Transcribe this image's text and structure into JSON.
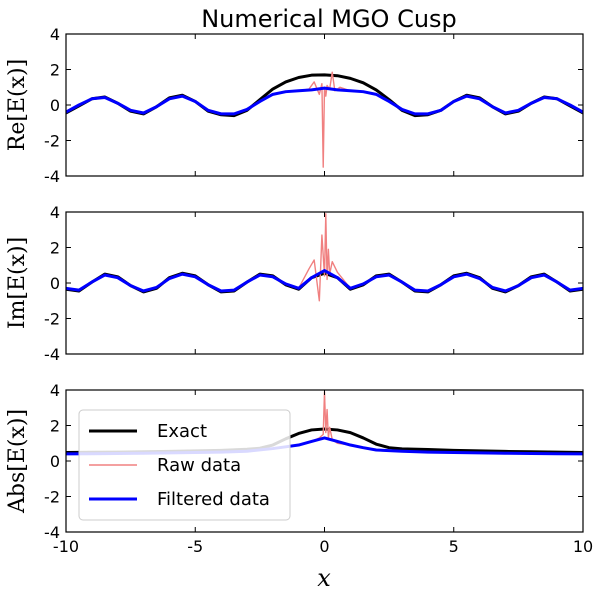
{
  "figure": {
    "title": "Numerical MGO Cusp",
    "xlabel": "x"
  },
  "chart_data": [
    {
      "type": "line",
      "ylabel": "Re[E(x)]",
      "xlim": [
        -10,
        10
      ],
      "ylim": [
        -4,
        4
      ],
      "x_ticks": [
        -10,
        -5,
        0,
        5,
        10
      ],
      "x_tick_labels": [
        "-10",
        "-5",
        "0",
        "5",
        "10"
      ],
      "y_ticks": [
        4,
        2,
        0,
        -2,
        -4
      ],
      "y_tick_labels": [
        "4",
        "2",
        "0",
        "-2",
        "-4"
      ],
      "grid": false,
      "series": [
        {
          "name": "Exact",
          "color": "#000000",
          "x": [
            -10,
            -9.5,
            -9,
            -8.5,
            -8,
            -7.5,
            -7,
            -6.5,
            -6,
            -5.5,
            -5,
            -4.5,
            -4,
            -3.5,
            -3,
            -2.5,
            -2,
            -1.5,
            -1,
            -0.5,
            0,
            0.5,
            1,
            1.5,
            2,
            2.5,
            3,
            3.5,
            4,
            4.5,
            5,
            5.5,
            6,
            6.5,
            7,
            7.5,
            8,
            8.5,
            9,
            9.5,
            10
          ],
          "y": [
            -0.45,
            -0.05,
            0.35,
            0.45,
            0.1,
            -0.35,
            -0.5,
            -0.1,
            0.4,
            0.55,
            0.2,
            -0.35,
            -0.55,
            -0.6,
            -0.3,
            0.3,
            0.9,
            1.3,
            1.55,
            1.68,
            1.7,
            1.65,
            1.5,
            1.25,
            0.85,
            0.3,
            -0.3,
            -0.6,
            -0.55,
            -0.3,
            0.2,
            0.55,
            0.4,
            -0.1,
            -0.5,
            -0.35,
            0.1,
            0.45,
            0.35,
            -0.05,
            -0.45
          ]
        },
        {
          "name": "Raw data",
          "color": "#f08080",
          "x": [
            -10,
            -9.5,
            -9,
            -8.5,
            -8,
            -7.5,
            -7,
            -6.5,
            -6,
            -5.5,
            -5,
            -4.5,
            -4,
            -3.5,
            -3,
            -2.5,
            -2,
            -1.5,
            -1,
            -0.6,
            -0.4,
            -0.2,
            -0.1,
            -0.05,
            0,
            0.05,
            0.1,
            0.2,
            0.3,
            0.4,
            0.6,
            1,
            1.5,
            2,
            2.5,
            3,
            3.5,
            4,
            4.5,
            5,
            5.5,
            6,
            6.5,
            7,
            7.5,
            8,
            8.5,
            9,
            9.5,
            10
          ],
          "y": [
            -0.4,
            0,
            0.35,
            0.42,
            0.1,
            -0.3,
            -0.45,
            -0.1,
            0.35,
            0.5,
            0.2,
            -0.3,
            -0.5,
            -0.5,
            -0.25,
            0.2,
            0.6,
            0.75,
            0.8,
            0.9,
            1.3,
            0.6,
            1.2,
            -3.5,
            1.0,
            0.5,
            1.1,
            0.9,
            1.85,
            0.8,
            1.0,
            0.8,
            0.75,
            0.6,
            0.2,
            -0.25,
            -0.5,
            -0.5,
            -0.3,
            0.2,
            0.5,
            0.35,
            -0.1,
            -0.45,
            -0.3,
            0.1,
            0.42,
            0.35,
            0,
            -0.4
          ]
        },
        {
          "name": "Filtered data",
          "color": "#0000ff",
          "x": [
            -10,
            -9.5,
            -9,
            -8.5,
            -8,
            -7.5,
            -7,
            -6.5,
            -6,
            -5.5,
            -5,
            -4.5,
            -4,
            -3.5,
            -3,
            -2.5,
            -2,
            -1.5,
            -1,
            -0.5,
            0,
            0.5,
            1,
            1.5,
            2,
            2.5,
            3,
            3.5,
            4,
            4.5,
            5,
            5.5,
            6,
            6.5,
            7,
            7.5,
            8,
            8.5,
            9,
            9.5,
            10
          ],
          "y": [
            -0.4,
            0,
            0.35,
            0.42,
            0.1,
            -0.3,
            -0.45,
            -0.1,
            0.35,
            0.5,
            0.2,
            -0.3,
            -0.5,
            -0.5,
            -0.25,
            0.2,
            0.6,
            0.75,
            0.8,
            0.85,
            0.95,
            0.85,
            0.8,
            0.75,
            0.6,
            0.2,
            -0.25,
            -0.5,
            -0.5,
            -0.3,
            0.2,
            0.5,
            0.35,
            -0.1,
            -0.45,
            -0.3,
            0.1,
            0.42,
            0.35,
            0,
            -0.4
          ]
        }
      ]
    },
    {
      "type": "line",
      "ylabel": "Im[E(x)]",
      "xlim": [
        -10,
        10
      ],
      "ylim": [
        -4,
        4
      ],
      "x_ticks": [
        -10,
        -5,
        0,
        5,
        10
      ],
      "x_tick_labels": [
        "-10",
        "-5",
        "0",
        "5",
        "10"
      ],
      "y_ticks": [
        4,
        2,
        0,
        -2,
        -4
      ],
      "y_tick_labels": [
        "4",
        "2",
        "0",
        "-2",
        "-4"
      ],
      "grid": false,
      "series": [
        {
          "name": "Exact",
          "color": "#000000",
          "x": [
            -10,
            -9.5,
            -9,
            -8.5,
            -8,
            -7.5,
            -7,
            -6.5,
            -6,
            -5.5,
            -5,
            -4.5,
            -4,
            -3.5,
            -3,
            -2.5,
            -2,
            -1.5,
            -1,
            -0.5,
            0,
            0.5,
            1,
            1.5,
            2,
            2.5,
            3,
            3.5,
            4,
            4.5,
            5,
            5.5,
            6,
            6.5,
            7,
            7.5,
            8,
            8.5,
            9,
            9.5,
            10
          ],
          "y": [
            -0.35,
            -0.45,
            0.05,
            0.5,
            0.35,
            -0.15,
            -0.5,
            -0.3,
            0.3,
            0.55,
            0.4,
            -0.1,
            -0.5,
            -0.45,
            0.05,
            0.5,
            0.4,
            -0.1,
            -0.35,
            0.3,
            0.55,
            0.3,
            -0.35,
            -0.1,
            0.4,
            0.5,
            0.05,
            -0.45,
            -0.5,
            -0.1,
            0.4,
            0.55,
            0.3,
            -0.3,
            -0.5,
            -0.15,
            0.35,
            0.5,
            0.05,
            -0.45,
            -0.35
          ]
        },
        {
          "name": "Raw data",
          "color": "#f08080",
          "x": [
            -10,
            -9.5,
            -9,
            -8.5,
            -8,
            -7.5,
            -7,
            -6.5,
            -6,
            -5.5,
            -5,
            -4.5,
            -4,
            -3.5,
            -3,
            -2.5,
            -2,
            -1.5,
            -1,
            -0.6,
            -0.4,
            -0.2,
            -0.1,
            0,
            0.05,
            0.1,
            0.15,
            0.2,
            0.3,
            0.5,
            1,
            1.5,
            2,
            2.5,
            3,
            3.5,
            4,
            4.5,
            5,
            5.5,
            6,
            6.5,
            7,
            7.5,
            8,
            8.5,
            9,
            9.5,
            10
          ],
          "y": [
            -0.3,
            -0.4,
            0.05,
            0.45,
            0.3,
            -0.15,
            -0.45,
            -0.25,
            0.25,
            0.5,
            0.35,
            -0.1,
            -0.45,
            -0.4,
            0.05,
            0.45,
            0.35,
            -0.05,
            -0.3,
            0.8,
            1.3,
            -1.0,
            2.7,
            0.4,
            3.9,
            0.2,
            1.9,
            0.5,
            1.2,
            0.6,
            -0.3,
            -0.05,
            0.35,
            0.45,
            0.05,
            -0.4,
            -0.45,
            -0.1,
            0.35,
            0.5,
            0.25,
            -0.25,
            -0.45,
            -0.15,
            0.3,
            0.45,
            0.05,
            -0.4,
            -0.3
          ]
        },
        {
          "name": "Filtered data",
          "color": "#0000ff",
          "x": [
            -10,
            -9.5,
            -9,
            -8.5,
            -8,
            -7.5,
            -7,
            -6.5,
            -6,
            -5.5,
            -5,
            -4.5,
            -4,
            -3.5,
            -3,
            -2.5,
            -2,
            -1.5,
            -1,
            -0.5,
            0,
            0.5,
            1,
            1.5,
            2,
            2.5,
            3,
            3.5,
            4,
            4.5,
            5,
            5.5,
            6,
            6.5,
            7,
            7.5,
            8,
            8.5,
            9,
            9.5,
            10
          ],
          "y": [
            -0.3,
            -0.4,
            0.05,
            0.45,
            0.3,
            -0.15,
            -0.45,
            -0.25,
            0.25,
            0.5,
            0.35,
            -0.1,
            -0.45,
            -0.4,
            0.05,
            0.45,
            0.35,
            -0.05,
            -0.3,
            0.3,
            0.7,
            0.3,
            -0.3,
            -0.05,
            0.35,
            0.45,
            0.05,
            -0.4,
            -0.45,
            -0.1,
            0.35,
            0.5,
            0.25,
            -0.25,
            -0.45,
            -0.15,
            0.3,
            0.45,
            0.05,
            -0.4,
            -0.3
          ]
        }
      ]
    },
    {
      "type": "line",
      "ylabel": "Abs[E(x)]",
      "xlim": [
        -10,
        10
      ],
      "ylim": [
        -4,
        4
      ],
      "x_ticks": [
        -10,
        -5,
        0,
        5,
        10
      ],
      "x_tick_labels": [
        "-10",
        "-5",
        "0",
        "5",
        "10"
      ],
      "y_ticks": [
        4,
        2,
        0,
        -2,
        -4
      ],
      "y_tick_labels": [
        "4",
        "2",
        "0",
        "-2",
        "-4"
      ],
      "grid": false,
      "legend": "lower-left",
      "series": [
        {
          "name": "Exact",
          "color": "#000000",
          "x": [
            -10,
            -9,
            -8,
            -7,
            -6,
            -5,
            -4,
            -3,
            -2.5,
            -2,
            -1.5,
            -1,
            -0.5,
            0,
            0.5,
            1,
            1.5,
            2,
            2.5,
            3,
            4,
            5,
            6,
            7,
            8,
            9,
            10
          ],
          "y": [
            0.48,
            0.49,
            0.5,
            0.52,
            0.54,
            0.57,
            0.6,
            0.66,
            0.72,
            0.9,
            1.25,
            1.55,
            1.75,
            1.8,
            1.75,
            1.6,
            1.3,
            0.95,
            0.75,
            0.68,
            0.65,
            0.6,
            0.57,
            0.54,
            0.52,
            0.5,
            0.48
          ]
        },
        {
          "name": "Raw data",
          "color": "#f08080",
          "x": [
            -10,
            -9,
            -8,
            -7,
            -6,
            -5,
            -4,
            -3,
            -2,
            -1,
            -0.5,
            -0.2,
            -0.05,
            0,
            0.05,
            0.1,
            0.15,
            0.2,
            0.3,
            0.5,
            1,
            1.5,
            2,
            3,
            4,
            5,
            6,
            7,
            8,
            9,
            10
          ],
          "y": [
            0.4,
            0.41,
            0.42,
            0.44,
            0.46,
            0.48,
            0.5,
            0.55,
            0.7,
            0.9,
            1.1,
            1.3,
            1.5,
            3.9,
            1.6,
            2.9,
            1.3,
            1.9,
            1.2,
            1.0,
            0.9,
            0.75,
            0.62,
            0.55,
            0.5,
            0.48,
            0.46,
            0.44,
            0.42,
            0.41,
            0.4
          ]
        },
        {
          "name": "Filtered data",
          "color": "#0000ff",
          "x": [
            -10,
            -9,
            -8,
            -7,
            -6,
            -5,
            -4,
            -3,
            -2,
            -1.5,
            -1,
            -0.5,
            0,
            0.5,
            1,
            1.5,
            2,
            3,
            4,
            5,
            6,
            7,
            8,
            9,
            10
          ],
          "y": [
            0.4,
            0.41,
            0.42,
            0.44,
            0.46,
            0.48,
            0.5,
            0.55,
            0.7,
            0.8,
            0.9,
            1.1,
            1.3,
            1.1,
            0.9,
            0.75,
            0.62,
            0.55,
            0.5,
            0.48,
            0.46,
            0.44,
            0.42,
            0.41,
            0.4
          ]
        }
      ]
    }
  ]
}
